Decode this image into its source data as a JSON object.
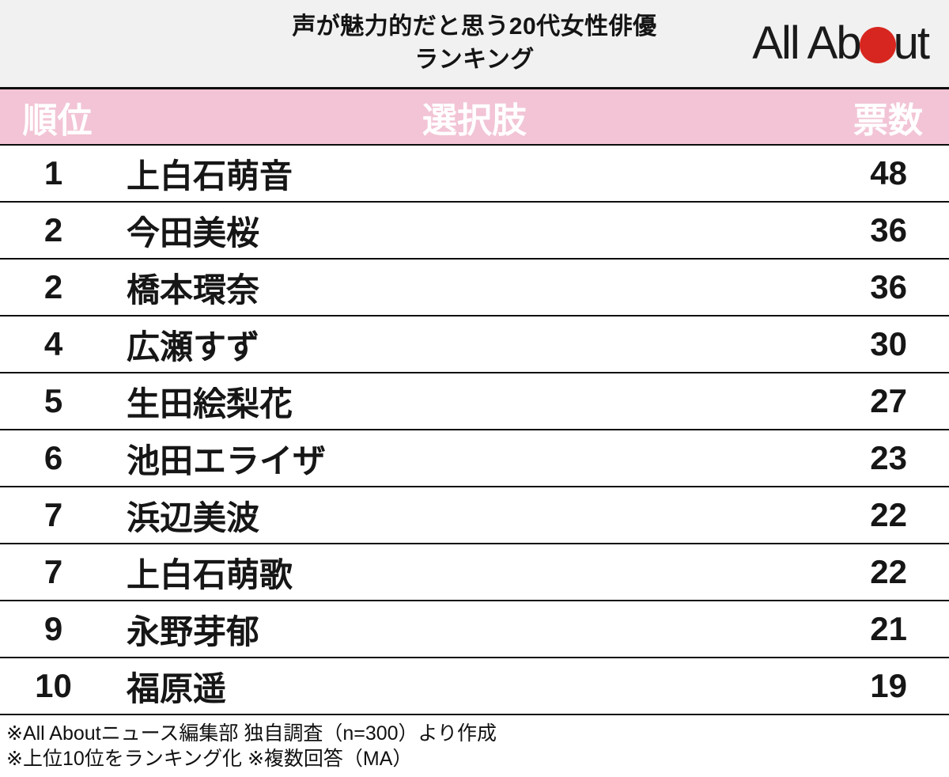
{
  "header": {
    "title_line1": "声が魅力的だと思う20代女性俳優",
    "title_line2": "ランキング",
    "logo": {
      "part1": "All Ab",
      "part2": "ut",
      "alt": "All About"
    }
  },
  "table": {
    "columns": {
      "rank": "順位",
      "choice": "選択肢",
      "votes": "票数"
    },
    "rows": [
      {
        "rank": "1",
        "name": "上白石萌音",
        "votes": "48"
      },
      {
        "rank": "2",
        "name": "今田美桜",
        "votes": "36"
      },
      {
        "rank": "2",
        "name": "橋本環奈",
        "votes": "36"
      },
      {
        "rank": "4",
        "name": "広瀬すず",
        "votes": "30"
      },
      {
        "rank": "5",
        "name": "生田絵梨花",
        "votes": "27"
      },
      {
        "rank": "6",
        "name": "池田エライザ",
        "votes": "23"
      },
      {
        "rank": "7",
        "name": "浜辺美波",
        "votes": "22"
      },
      {
        "rank": "7",
        "name": "上白石萌歌",
        "votes": "22"
      },
      {
        "rank": "9",
        "name": "永野芽郁",
        "votes": "21"
      },
      {
        "rank": "10",
        "name": "福原遥",
        "votes": "19"
      }
    ]
  },
  "footer": {
    "notes": [
      "※All Aboutニュース編集部 独自調査（n=300）より作成",
      "※上位10位をランキング化 ※複数回答（MA）"
    ]
  },
  "colors": {
    "titlebar_bg": "#f1f1f1",
    "header_row_bg": "#f2c4d6",
    "rule_line": "#0d0d0d",
    "logo_red": "#d7261f",
    "header_text": "#ffffff",
    "body_text": "#1b1b1b"
  },
  "chart_data": {
    "type": "table",
    "title": "声が魅力的だと思う20代女性俳優ランキング",
    "columns": [
      "順位",
      "選択肢",
      "票数"
    ],
    "rows": [
      [
        1,
        "上白石萌音",
        48
      ],
      [
        2,
        "今田美桜",
        36
      ],
      [
        2,
        "橋本環奈",
        36
      ],
      [
        4,
        "広瀬すず",
        30
      ],
      [
        5,
        "生田絵梨花",
        27
      ],
      [
        6,
        "池田エライザ",
        23
      ],
      [
        7,
        "浜辺美波",
        22
      ],
      [
        7,
        "上白石萌歌",
        22
      ],
      [
        9,
        "永野芽郁",
        21
      ],
      [
        10,
        "福原遥",
        19
      ]
    ],
    "notes": [
      "※All Aboutニュース編集部 独自調査（n=300）より作成",
      "※上位10位をランキング化 ※複数回答（MA）"
    ],
    "source": "All About"
  }
}
